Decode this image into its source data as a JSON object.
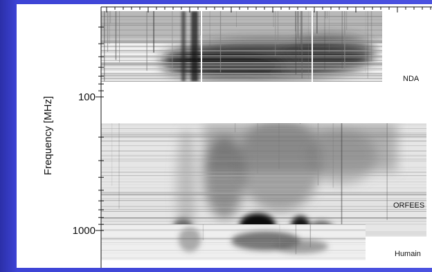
{
  "chart_data": {
    "type": "heatmap",
    "title": "",
    "ylabel": "Frequency [MHz]",
    "xlabel": "",
    "y_scale": "log",
    "y_inverted": true,
    "y_ticks": [
      {
        "value": 100,
        "label": "100"
      },
      {
        "value": 1000,
        "label": "1000"
      }
    ],
    "bands": [
      {
        "name": "NDA"
      },
      {
        "name": "ORFEES"
      },
      {
        "name": "Humain"
      }
    ],
    "colormap": "grayscale",
    "grid": false
  }
}
